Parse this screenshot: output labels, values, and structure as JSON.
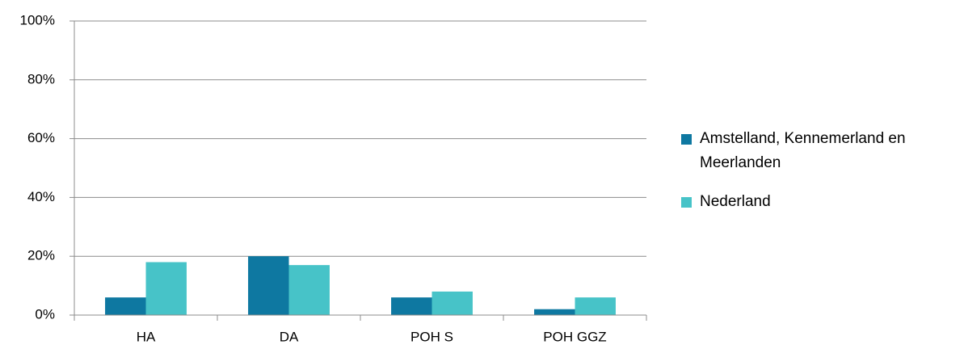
{
  "chart_data": {
    "type": "bar",
    "categories": [
      "HA",
      "DA",
      "POH S",
      "POH GGZ"
    ],
    "series": [
      {
        "name": "Amstelland, Kennemerland en Meerlanden",
        "color": "#0e78a1",
        "values": [
          6,
          20,
          6,
          2
        ]
      },
      {
        "name": "Nederland",
        "color": "#47c3c8",
        "values": [
          18,
          17,
          8,
          6
        ]
      }
    ],
    "ylim": [
      0,
      100
    ],
    "yticks": [
      {
        "value": 0,
        "label": "0%"
      },
      {
        "value": 20,
        "label": "20%"
      },
      {
        "value": 40,
        "label": "40%"
      },
      {
        "value": 60,
        "label": "60%"
      },
      {
        "value": 80,
        "label": "80%"
      },
      {
        "value": 100,
        "label": "100%"
      }
    ],
    "grid": true,
    "legend": "right"
  }
}
